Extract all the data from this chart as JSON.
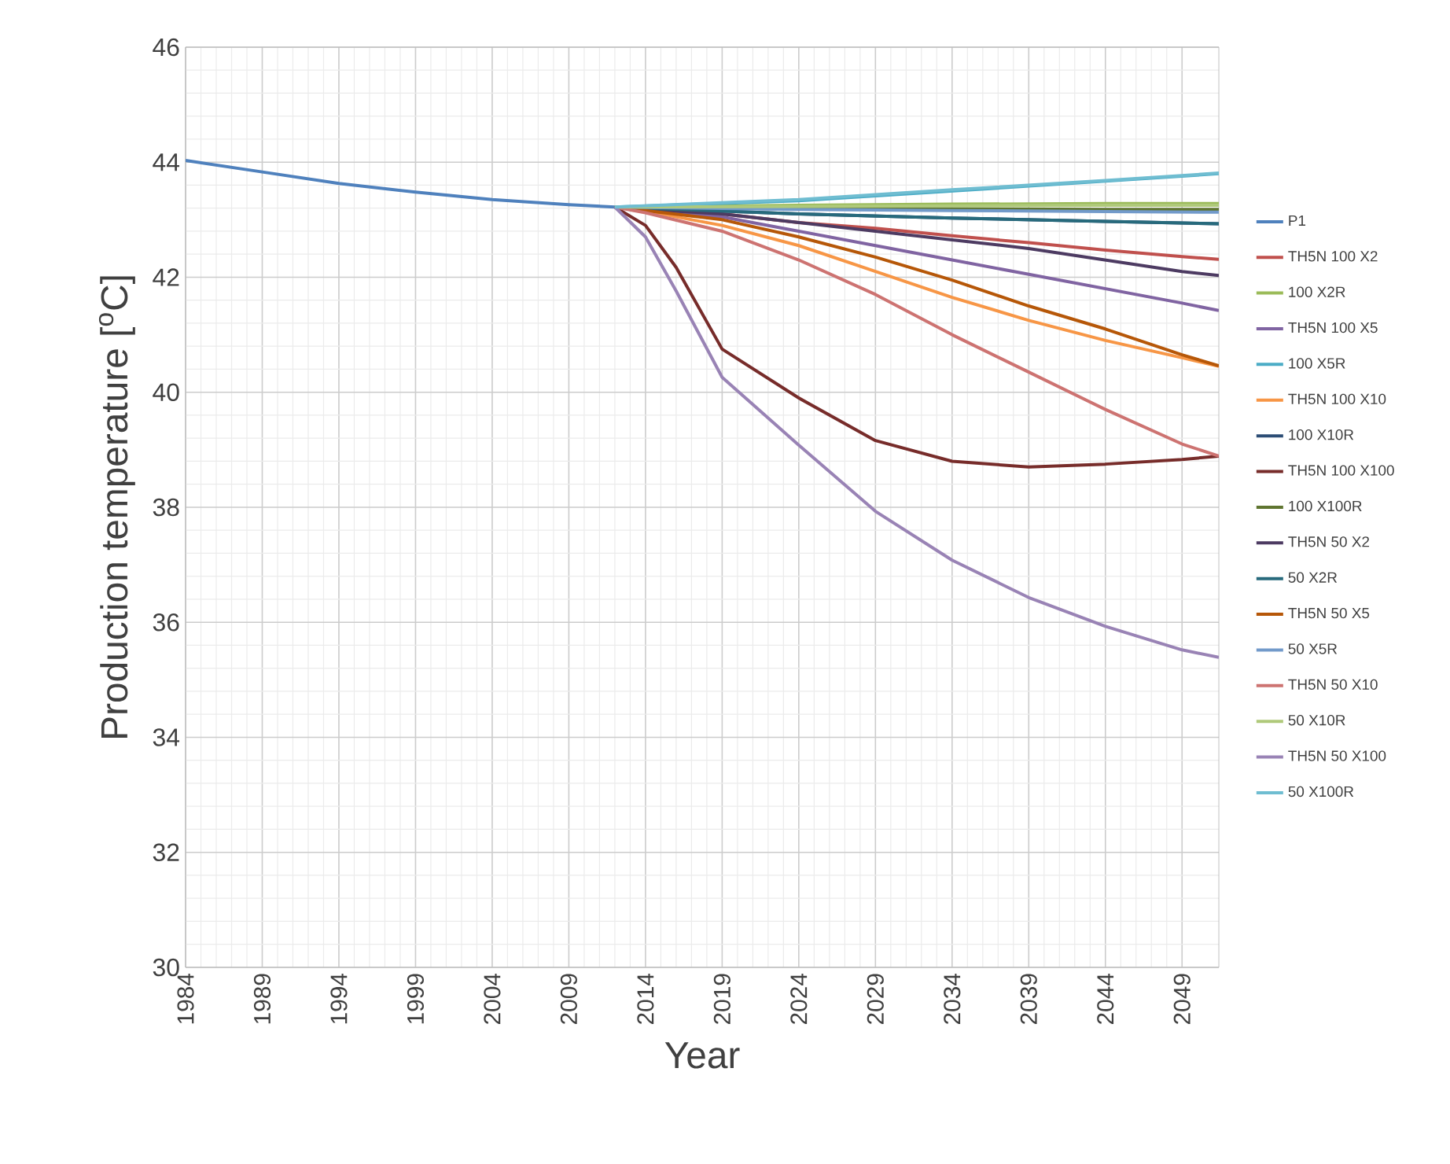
{
  "chart_data": {
    "type": "line",
    "xlabel": "Year",
    "ylabel": "Production temperature [$^{o}$C]",
    "xlim": [
      1984,
      2051.4
    ],
    "ylim": [
      30,
      46
    ],
    "xticks": [
      1984,
      1989,
      1994,
      1999,
      2004,
      2009,
      2014,
      2019,
      2024,
      2029,
      2034,
      2039,
      2044,
      2049
    ],
    "yticks": [
      30,
      32,
      34,
      36,
      38,
      40,
      42,
      44,
      46
    ],
    "grid": true,
    "legend": "right",
    "line_style": "solid",
    "marker": "none",
    "series": [
      {
        "name": "P1",
        "color": "#4f81bd",
        "x": [
          1984,
          1989,
          1994,
          1999,
          2004,
          2009,
          2012
        ],
        "values": [
          44.03,
          43.83,
          43.63,
          43.48,
          43.35,
          43.26,
          43.22
        ]
      },
      {
        "name": "TH5N 100 X2",
        "color": "#c0504d",
        "x": [
          2012,
          2014,
          2019,
          2024,
          2029,
          2034,
          2039,
          2044,
          2049,
          2051.4
        ],
        "values": [
          43.22,
          43.18,
          43.1,
          42.95,
          42.85,
          42.72,
          42.6,
          42.47,
          42.36,
          42.31
        ]
      },
      {
        "name": "100 X2R",
        "color": "#9bbb59",
        "x": [
          2012,
          2024,
          2034,
          2044,
          2051.4
        ],
        "values": [
          43.22,
          43.25,
          43.27,
          43.28,
          43.28
        ]
      },
      {
        "name": "TH5N 100 X5",
        "color": "#8064a2",
        "x": [
          2012,
          2014,
          2019,
          2024,
          2029,
          2034,
          2039,
          2044,
          2049,
          2051.4
        ],
        "values": [
          43.22,
          43.17,
          43.05,
          42.8,
          42.55,
          42.3,
          42.05,
          41.8,
          41.55,
          41.42
        ]
      },
      {
        "name": "100 X5R",
        "color": "#4bacc6",
        "x": [
          2012,
          2024,
          2034,
          2044,
          2051.4
        ],
        "values": [
          43.22,
          43.33,
          43.5,
          43.67,
          43.8
        ]
      },
      {
        "name": "TH5N 100 X10",
        "color": "#f79646",
        "x": [
          2012,
          2014,
          2019,
          2024,
          2029,
          2034,
          2039,
          2044,
          2049,
          2051.4
        ],
        "values": [
          43.22,
          43.15,
          42.9,
          42.55,
          42.1,
          41.65,
          41.25,
          40.9,
          40.6,
          40.45
        ]
      },
      {
        "name": "100 X10R",
        "color": "#2c4d75",
        "x": [
          2012,
          2024,
          2034,
          2044,
          2051.4
        ],
        "values": [
          43.22,
          43.1,
          43.03,
          42.97,
          42.93
        ]
      },
      {
        "name": "TH5N 100 X100",
        "color": "#772c2a",
        "x": [
          2012,
          2014,
          2016,
          2019,
          2024,
          2029,
          2034,
          2039,
          2044,
          2049,
          2051.4
        ],
        "values": [
          43.22,
          42.9,
          42.17,
          40.75,
          39.9,
          39.16,
          38.8,
          38.7,
          38.75,
          38.83,
          38.89
        ]
      },
      {
        "name": "100 X100R",
        "color": "#5f7530",
        "x": [
          2012,
          2024,
          2034,
          2044,
          2051.4
        ],
        "values": [
          43.22,
          43.2,
          43.19,
          43.18,
          43.18
        ]
      },
      {
        "name": "TH5N 50 X2",
        "color": "#4d3b62",
        "x": [
          2012,
          2014,
          2019,
          2024,
          2029,
          2034,
          2039,
          2044,
          2049,
          2051.4
        ],
        "values": [
          43.22,
          43.18,
          43.1,
          42.95,
          42.8,
          42.65,
          42.5,
          42.3,
          42.1,
          42.03
        ]
      },
      {
        "name": "50 X2R",
        "color": "#276a7c",
        "x": [
          2012,
          2024,
          2034,
          2044,
          2051.4
        ],
        "values": [
          43.22,
          43.1,
          43.03,
          42.97,
          42.93
        ]
      },
      {
        "name": "TH5N 50 X5",
        "color": "#b65708",
        "x": [
          2012,
          2014,
          2019,
          2024,
          2029,
          2034,
          2039,
          2044,
          2049,
          2051.4
        ],
        "values": [
          43.22,
          43.16,
          43.0,
          42.7,
          42.35,
          41.95,
          41.5,
          41.1,
          40.65,
          40.46
        ]
      },
      {
        "name": "50 X5R",
        "color": "#729aca",
        "x": [
          2012,
          2024,
          2034,
          2044,
          2051.4
        ],
        "values": [
          43.22,
          43.18,
          43.16,
          43.14,
          43.13
        ]
      },
      {
        "name": "TH5N 50 X10",
        "color": "#cd7371",
        "x": [
          2012,
          2014,
          2019,
          2024,
          2029,
          2034,
          2039,
          2044,
          2049,
          2051.4
        ],
        "values": [
          43.22,
          43.12,
          42.8,
          42.3,
          41.7,
          41.0,
          40.35,
          39.7,
          39.1,
          38.89
        ]
      },
      {
        "name": "50 X10R",
        "color": "#afc97a",
        "x": [
          2012,
          2024,
          2034,
          2044,
          2051.4
        ],
        "values": [
          43.22,
          43.23,
          43.24,
          43.25,
          43.25
        ]
      },
      {
        "name": "TH5N 50 X100",
        "color": "#9983b5",
        "x": [
          2012,
          2014,
          2016,
          2019,
          2024,
          2029,
          2034,
          2039,
          2044,
          2049,
          2051.4
        ],
        "values": [
          43.22,
          42.7,
          41.76,
          40.26,
          39.08,
          37.93,
          37.08,
          36.43,
          35.93,
          35.52,
          35.39
        ]
      },
      {
        "name": "50 X100R",
        "color": "#6fbdd1",
        "x": [
          2012,
          2024,
          2034,
          2044,
          2051.4
        ],
        "values": [
          43.22,
          43.35,
          43.52,
          43.68,
          43.81
        ]
      }
    ]
  }
}
